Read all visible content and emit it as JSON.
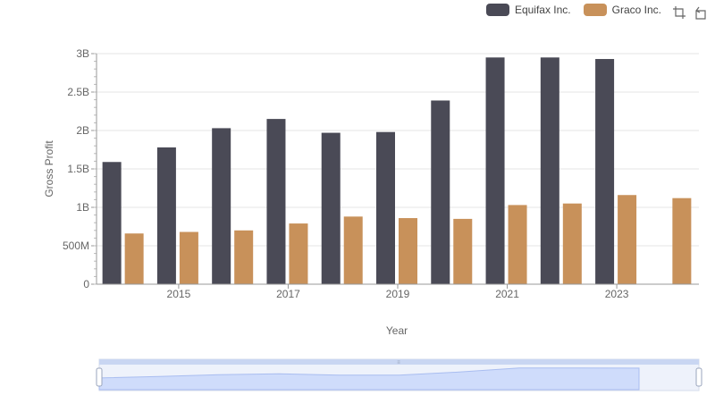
{
  "chart_data": {
    "type": "bar",
    "xlabel": "Year",
    "ylabel": "Gross Profit",
    "ylim": [
      0,
      3000000000
    ],
    "y_ticks": [
      0,
      500000000,
      1000000000,
      1500000000,
      2000000000,
      2500000000,
      3000000000
    ],
    "y_tick_labels": [
      "0",
      "500M",
      "1B",
      "1.5B",
      "2B",
      "2.5B",
      "3B"
    ],
    "categories": [
      2014,
      2015,
      2016,
      2017,
      2018,
      2019,
      2020,
      2021,
      2022,
      2023,
      2024
    ],
    "x_tick_labels": [
      "2015",
      "2017",
      "2019",
      "2021",
      "2023"
    ],
    "grid": true,
    "legend_position": "top-right",
    "series": [
      {
        "name": "Equifax Inc.",
        "color": "#4a4a56",
        "values": [
          1590000000,
          1780000000,
          2030000000,
          2150000000,
          1970000000,
          1980000000,
          2390000000,
          2950000000,
          2950000000,
          2930000000,
          null
        ]
      },
      {
        "name": "Graco Inc.",
        "color": "#c8915a",
        "values": [
          660000000,
          680000000,
          700000000,
          790000000,
          880000000,
          860000000,
          850000000,
          1030000000,
          1050000000,
          1160000000,
          1120000000
        ]
      }
    ]
  },
  "toolbar": {
    "zoom_icon": "zoom-select-icon",
    "reset_icon": "zoom-reset-icon"
  }
}
